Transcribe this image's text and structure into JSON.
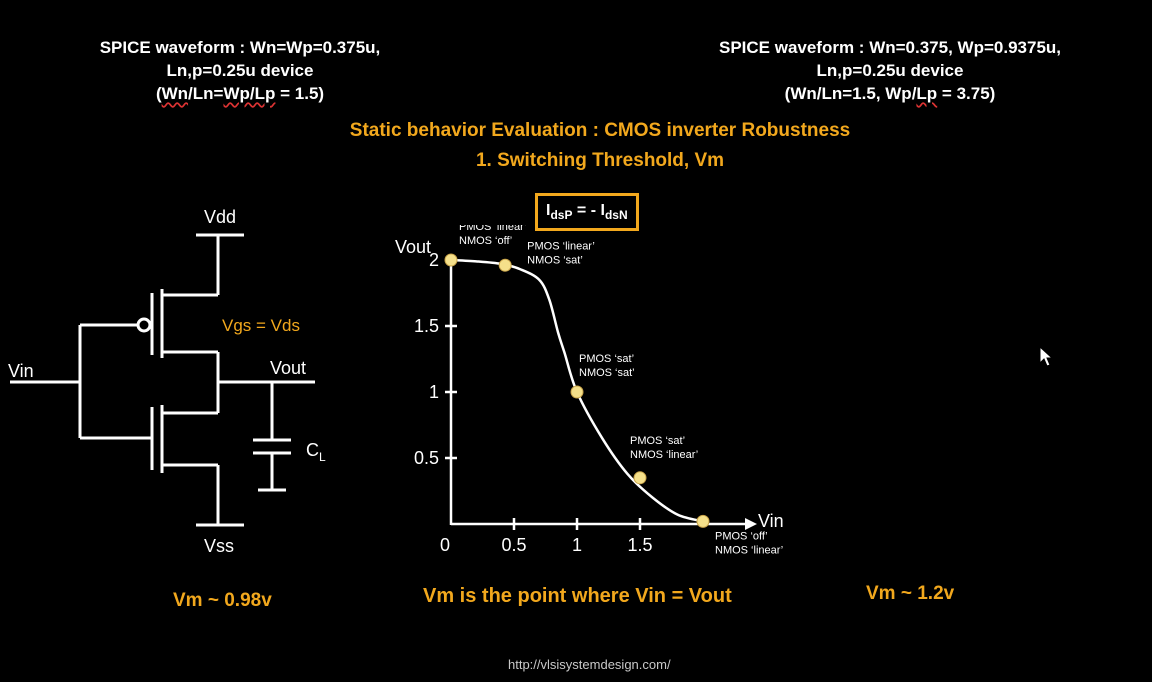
{
  "left_header": {
    "line1": "SPICE waveform : Wn=Wp=0.375u,",
    "line2": "Ln,p=0.25u device",
    "line3_pre": "(",
    "line3_a": "Wn",
    "line3_mid": "/Ln=",
    "line3_b": "Wp/Lp",
    "line3_post": " = 1.5)"
  },
  "right_header": {
    "line1": "SPICE waveform : Wn=0.375, Wp=0.9375u,",
    "line2": "Ln,p=0.25u device",
    "line3_pre": "(Wn/Ln=1.5, Wp/",
    "line3_b": "Lp",
    "line3_post": " = 3.75)"
  },
  "title": {
    "line1": "Static behavior Evaluation : CMOS inverter Robustness",
    "line2": "1. Switching Threshold, Vm"
  },
  "equation": {
    "lhs": "I",
    "lhs_sub": "dsP",
    "op": " = - ",
    "rhs": "I",
    "rhs_sub": "dsN"
  },
  "circuit": {
    "vdd": "Vdd",
    "vss": "Vss",
    "vin": "Vin",
    "vout": "Vout",
    "cap": "C",
    "cap_sub": "L",
    "note": "Vgs = Vds"
  },
  "chart_data": {
    "type": "line",
    "xlabel": "Vin",
    "ylabel": "Vout",
    "x_ticks": [
      "0",
      "0.5",
      "1",
      "1.5"
    ],
    "y_ticks": [
      "2",
      "1.5",
      "1",
      "0.5"
    ],
    "xlim": [
      0,
      2
    ],
    "ylim": [
      0,
      2.1
    ],
    "series": [
      {
        "x": [
          0,
          0.2,
          0.4,
          0.55,
          0.7,
          0.78,
          0.85,
          0.9,
          1.0,
          1.2,
          1.4,
          1.6,
          1.8,
          2.0
        ],
        "y": [
          2.0,
          1.99,
          1.97,
          1.93,
          1.85,
          1.7,
          1.45,
          1.3,
          1.0,
          0.65,
          0.38,
          0.2,
          0.07,
          0.02
        ]
      }
    ],
    "points": [
      {
        "x": 0.0,
        "y": 2.0,
        "label1": "PMOS ‘linear’",
        "label2": "NMOS ‘off’"
      },
      {
        "x": 0.43,
        "y": 1.96,
        "label1": "PMOS ‘linear’",
        "label2": "NMOS ‘sat’"
      },
      {
        "x": 1.0,
        "y": 1.0,
        "label1": "PMOS ‘sat’",
        "label2": "NMOS ‘sat’"
      },
      {
        "x": 1.5,
        "y": 0.35,
        "label1": "PMOS ‘sat’",
        "label2": "NMOS ‘linear’"
      },
      {
        "x": 2.0,
        "y": 0.02,
        "label1": "PMOS ‘off’",
        "label2": "NMOS ‘linear’"
      }
    ]
  },
  "footer": {
    "vm_left": "Vm ~ 0.98v",
    "vm_center": "Vm is the point where Vin = Vout",
    "vm_right": "Vm ~ 1.2v",
    "url": "http://vlsisystemdesign.com/"
  },
  "colors": {
    "accent": "#f2a81d",
    "marker": "#f5e08a"
  },
  "icons": {
    "cursor": "mouse-pointer-icon"
  }
}
